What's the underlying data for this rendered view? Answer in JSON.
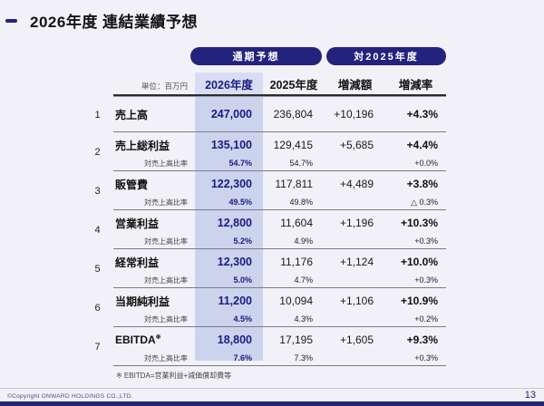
{
  "page": {
    "title": "2026年度 連結業績予想",
    "footer_copyright": "©Copyright ONWARD HOLDINGS CO.,LTD.",
    "page_number": "13"
  },
  "colors": {
    "navy": "#23237d",
    "highlight_column": "#ccd3ed",
    "highlight_header": "#d9ddf3"
  },
  "table": {
    "unit_label": "単位：百万円",
    "badge_forecast": "通期予想",
    "badge_vs": "対2025年度",
    "col_headers": [
      "2026年度",
      "2025年度",
      "増減額",
      "増減率"
    ],
    "ratio_label": "対売上高比率",
    "footnote": "※ EBITDA=営業利益+減価償却費等",
    "rows": [
      {
        "no": "1",
        "label": "売上高",
        "v2026": "247,000",
        "v2025": "236,804",
        "diff": "+10,196",
        "rate": "+4.3%"
      },
      {
        "no": "2",
        "label": "売上総利益",
        "v2026": "135,100",
        "v2025": "129,415",
        "diff": "+5,685",
        "rate": "+4.4%",
        "ratio2026": "54.7%",
        "ratio2025": "54.7%",
        "ratioRate": "+0.0%"
      },
      {
        "no": "3",
        "label": "販管費",
        "v2026": "122,300",
        "v2025": "117,811",
        "diff": "+4,489",
        "rate": "+3.8%",
        "ratio2026": "49.5%",
        "ratio2025": "49.8%",
        "ratioRate": "△ 0.3%"
      },
      {
        "no": "4",
        "label": "営業利益",
        "v2026": "12,800",
        "v2025": "11,604",
        "diff": "+1,196",
        "rate": "+10.3%",
        "ratio2026": "5.2%",
        "ratio2025": "4.9%",
        "ratioRate": "+0.3%"
      },
      {
        "no": "5",
        "label": "経常利益",
        "v2026": "12,300",
        "v2025": "11,176",
        "diff": "+1,124",
        "rate": "+10.0%",
        "ratio2026": "5.0%",
        "ratio2025": "4.7%",
        "ratioRate": "+0.3%"
      },
      {
        "no": "6",
        "label": "当期純利益",
        "v2026": "11,200",
        "v2025": "10,094",
        "diff": "+1,106",
        "rate": "+10.9%",
        "ratio2026": "4.5%",
        "ratio2025": "4.3%",
        "ratioRate": "+0.2%"
      },
      {
        "no": "7",
        "label": "EBITDA",
        "label_sup": "※",
        "v2026": "18,800",
        "v2025": "17,195",
        "diff": "+1,605",
        "rate": "+9.3%",
        "ratio2026": "7.6%",
        "ratio2025": "7.3%",
        "ratioRate": "+0.3%"
      }
    ]
  }
}
